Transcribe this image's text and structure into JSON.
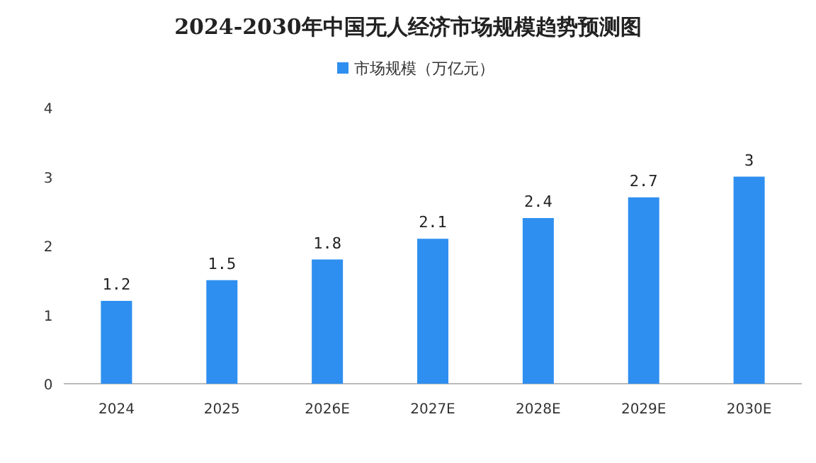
{
  "chart_data": {
    "type": "bar",
    "title": "2024-2030年中国无人经济市场规模趋势预测图",
    "categories": [
      "2024",
      "2025",
      "2026E",
      "2027E",
      "2028E",
      "2029E",
      "2030E"
    ],
    "series": [
      {
        "name": "市场规模（万亿元）",
        "color": "#2f8ff0",
        "values": [
          1.2,
          1.5,
          1.8,
          2.1,
          2.4,
          2.7,
          3
        ]
      }
    ],
    "ylim": [
      0,
      4
    ],
    "yticks": [
      0,
      1,
      2,
      3,
      4
    ],
    "data_labels": true,
    "legend": "top",
    "grid": false
  }
}
